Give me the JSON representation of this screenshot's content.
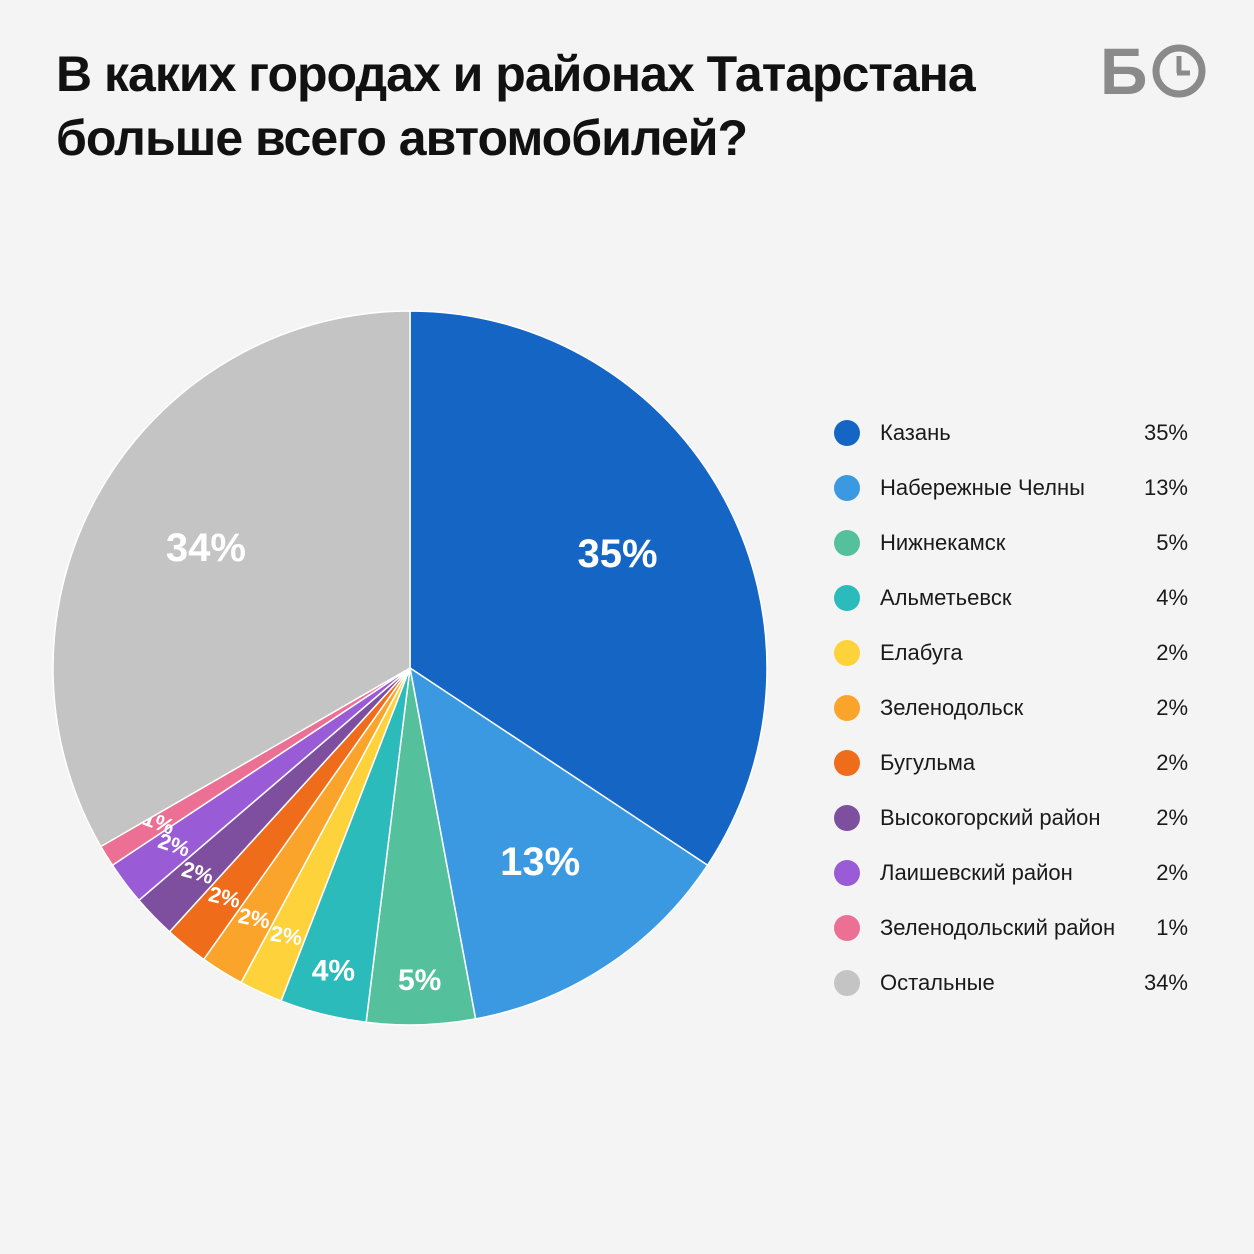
{
  "title": "В каких городах и районах Татарстана больше всего автомобилей?",
  "logo": {
    "text": "Б",
    "icon": "clock-icon",
    "color": "#8a8a8a"
  },
  "chart_data": {
    "type": "pie",
    "title": "В каких городах и районах Татарстана больше всего автомобилей?",
    "legend_position": "right",
    "slices": [
      {
        "name": "Казань",
        "value": 35,
        "label": "35%",
        "color": "#1565c4"
      },
      {
        "name": "Набережные Челны",
        "value": 13,
        "label": "13%",
        "color": "#3a99e0"
      },
      {
        "name": "Нижнекамск",
        "value": 5,
        "label": "5%",
        "color": "#55c19c"
      },
      {
        "name": "Альметьевск",
        "value": 4,
        "label": "4%",
        "color": "#2cbbbb"
      },
      {
        "name": "Елабуга",
        "value": 2,
        "label": "2%",
        "color": "#fdd23a"
      },
      {
        "name": "Зеленодольск",
        "value": 2,
        "label": "2%",
        "color": "#fba42b"
      },
      {
        "name": "Бугульма",
        "value": 2,
        "label": "2%",
        "color": "#ef6c1a"
      },
      {
        "name": "Высокогорский район",
        "value": 2,
        "label": "2%",
        "color": "#7e4f9e"
      },
      {
        "name": "Лаишевский район",
        "value": 2,
        "label": "2%",
        "color": "#9a5bd6"
      },
      {
        "name": "Зеленодольский район",
        "value": 1,
        "label": "1%",
        "color": "#ec6f94"
      },
      {
        "name": "Остальные",
        "value": 34,
        "label": "34%",
        "color": "#c4c4c4"
      }
    ]
  }
}
